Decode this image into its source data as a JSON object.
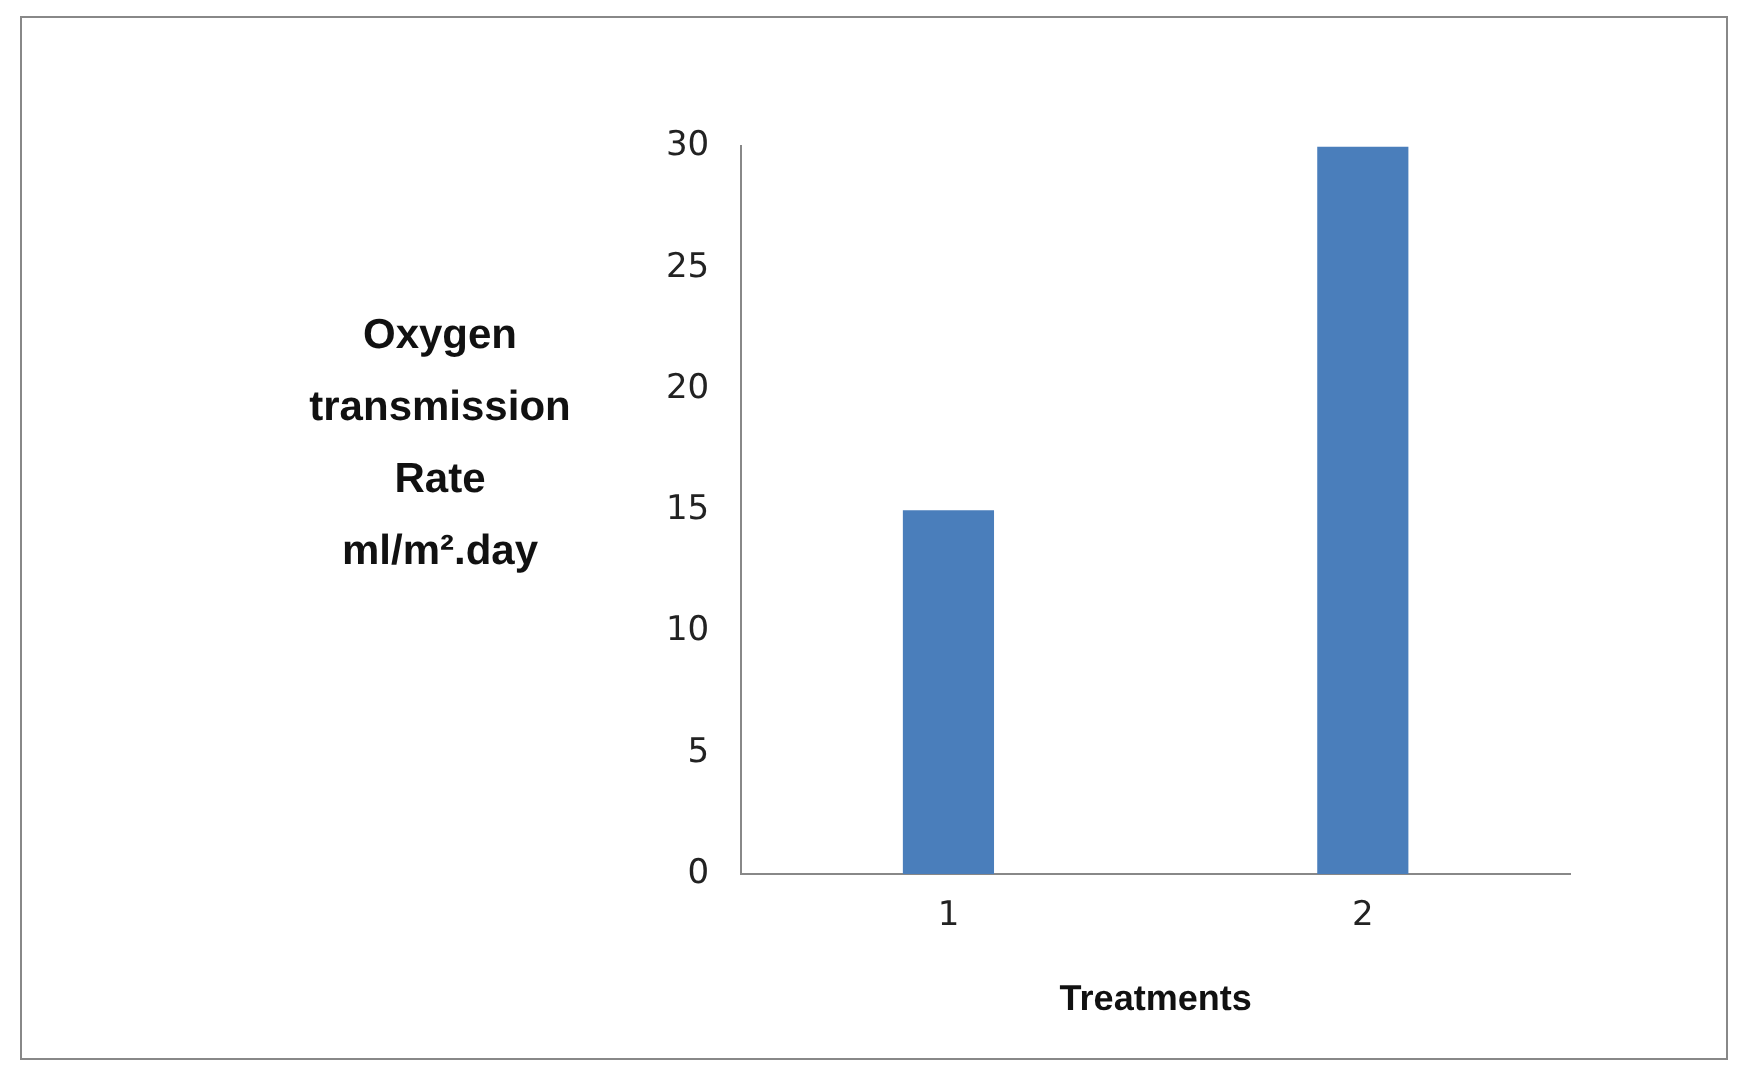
{
  "chart_data": {
    "type": "bar",
    "xlabel": "Treatments",
    "ylabel": "Oxygen transmission Rate ml/m².day",
    "categories": [
      "1",
      "2"
    ],
    "values": [
      15,
      30
    ],
    "color": "#4a7ebb",
    "ylim": [
      0,
      30
    ],
    "yticks": [
      0,
      5,
      10,
      15,
      20,
      25,
      30
    ],
    "grid": false,
    "legend": false
  }
}
